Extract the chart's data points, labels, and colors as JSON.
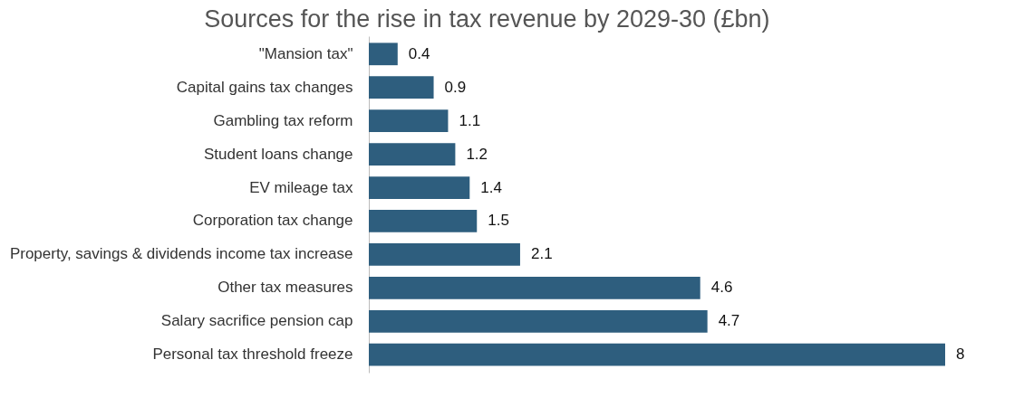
{
  "chart_data": {
    "type": "bar",
    "orientation": "horizontal",
    "title": "Sources for the rise in tax revenue by 2029-30 (£bn)",
    "categories": [
      "\"Mansion tax\"",
      "Capital gains tax changes",
      "Gambling tax reform",
      "Student loans change",
      "EV mileage tax",
      "Corporation tax change",
      "Property, savings & dividends income tax increase",
      "Other tax measures",
      "Salary sacrifice pension cap",
      "Personal tax threshold freeze"
    ],
    "values": [
      0.4,
      0.9,
      1.1,
      1.2,
      1.4,
      1.5,
      2.1,
      4.6,
      4.7,
      8
    ],
    "color": "#2e5e7e",
    "data_labels": true
  }
}
